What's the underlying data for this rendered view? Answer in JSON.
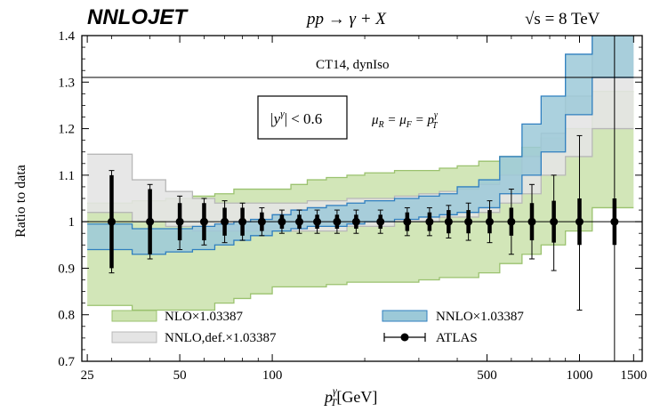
{
  "chart_data": {
    "type": "line",
    "title_logo": "NNLOJET",
    "process": "pp → γ + X",
    "energy": "√s = 8 TeV",
    "ylabel": "Ratio to data",
    "xlabel_main": "p",
    "xlabel_sup": "γ",
    "xlabel_sub": "T",
    "xlabel_unit": "[GeV]",
    "xscale": "log",
    "xlim": [
      24,
      1600
    ],
    "ylim": [
      0.7,
      1.4
    ],
    "x_ticks": [
      25,
      50,
      100,
      500,
      1000,
      1500
    ],
    "y_ticks": [
      0.7,
      0.8,
      0.9,
      1,
      1.1,
      1.2,
      1.3,
      1.4
    ],
    "annotations": {
      "pdf": "CT14, dynIso",
      "rapidity": "|y",
      "rapidity_sup": "γ",
      "rapidity_rest": "| < 0.6",
      "scale_a": "μ",
      "scale_b": "R",
      "scale_c": " = μ",
      "scale_d": "F",
      "scale_e": " = p",
      "scale_f": "γ",
      "scale_g": "T"
    },
    "hline_y": 1.31,
    "bin_edges": [
      25,
      35,
      45,
      55,
      65,
      75,
      85,
      100,
      115,
      130,
      150,
      175,
      200,
      250,
      300,
      350,
      400,
      470,
      550,
      650,
      750,
      900,
      1100,
      1500
    ],
    "series": [
      {
        "name": "NLO×1.03387",
        "color": "#cde3b0",
        "edge": "#9bc26f",
        "lo": [
          0.82,
          0.81,
          0.81,
          0.81,
          0.825,
          0.835,
          0.845,
          0.86,
          0.86,
          0.86,
          0.865,
          0.87,
          0.87,
          0.87,
          0.875,
          0.88,
          0.88,
          0.89,
          0.91,
          0.93,
          0.95,
          0.98,
          1.03
        ],
        "hi": [
          1.04,
          1.045,
          1.05,
          1.055,
          1.06,
          1.07,
          1.07,
          1.07,
          1.08,
          1.09,
          1.095,
          1.1,
          1.105,
          1.11,
          1.11,
          1.115,
          1.12,
          1.13,
          1.14,
          1.16,
          1.18,
          1.2,
          1.28
        ]
      },
      {
        "name": "NNLO,def.×1.03387",
        "color": "#e4e4e4",
        "edge": "#b8b8b8",
        "lo": [
          1.02,
          1.0,
          0.99,
          0.98,
          0.98,
          0.98,
          0.98,
          0.98,
          0.98,
          0.98,
          0.98,
          0.99,
          0.99,
          1.0,
          1.0,
          1.01,
          1.01,
          1.02,
          1.04,
          1.06,
          1.1,
          1.14,
          1.2
        ],
        "hi": [
          1.145,
          1.09,
          1.065,
          1.05,
          1.04,
          1.04,
          1.04,
          1.04,
          1.04,
          1.045,
          1.045,
          1.05,
          1.05,
          1.055,
          1.06,
          1.065,
          1.07,
          1.08,
          1.1,
          1.14,
          1.19,
          1.27,
          1.4
        ]
      },
      {
        "name": "NNLO×1.03387",
        "color": "#9cc9d8",
        "edge": "#2f7fbf",
        "lo": [
          0.94,
          0.93,
          0.935,
          0.94,
          0.95,
          0.96,
          0.97,
          0.98,
          0.985,
          0.99,
          0.99,
          0.995,
          1.0,
          1.005,
          1.01,
          1.015,
          1.02,
          1.03,
          1.06,
          1.1,
          1.15,
          1.23,
          1.31
        ],
        "hi": [
          0.995,
          0.985,
          0.985,
          0.99,
          0.995,
          1.0,
          1.005,
          1.015,
          1.025,
          1.03,
          1.035,
          1.04,
          1.045,
          1.05,
          1.055,
          1.06,
          1.075,
          1.09,
          1.14,
          1.21,
          1.27,
          1.36,
          1.49
        ]
      }
    ],
    "data_series": {
      "name": "ATLAS",
      "x": [
        30,
        40,
        50,
        60,
        70,
        80,
        92.5,
        107.5,
        122.5,
        140,
        162.5,
        187.5,
        225,
        275,
        325,
        375,
        435,
        510,
        600,
        700,
        825,
        1000,
        1300
      ],
      "y": [
        1,
        1,
        1,
        1,
        1,
        1,
        1,
        1,
        1,
        1,
        1,
        1,
        1,
        1,
        1,
        1,
        1,
        1,
        1,
        1,
        1,
        1,
        1
      ],
      "stat_lo": [
        0.9,
        0.93,
        0.96,
        0.96,
        0.97,
        0.97,
        0.98,
        0.985,
        0.985,
        0.985,
        0.985,
        0.985,
        0.985,
        0.98,
        0.98,
        0.975,
        0.975,
        0.975,
        0.97,
        0.96,
        0.955,
        0.95,
        0.95
      ],
      "stat_hi": [
        1.1,
        1.07,
        1.04,
        1.04,
        1.03,
        1.03,
        1.02,
        1.015,
        1.015,
        1.015,
        1.015,
        1.015,
        1.015,
        1.02,
        1.02,
        1.025,
        1.025,
        1.025,
        1.03,
        1.04,
        1.045,
        1.05,
        1.05
      ],
      "tot_lo": [
        0.89,
        0.92,
        0.94,
        0.95,
        0.955,
        0.96,
        0.97,
        0.975,
        0.975,
        0.975,
        0.975,
        0.975,
        0.975,
        0.97,
        0.97,
        0.965,
        0.96,
        0.955,
        0.93,
        0.92,
        0.895,
        0.81,
        0.7
      ],
      "tot_hi": [
        1.11,
        1.08,
        1.055,
        1.05,
        1.045,
        1.04,
        1.03,
        1.025,
        1.025,
        1.025,
        1.025,
        1.025,
        1.025,
        1.03,
        1.03,
        1.035,
        1.04,
        1.045,
        1.07,
        1.08,
        1.1,
        1.185,
        1.4
      ]
    },
    "legend": {
      "nlo": "NLO×1.03387",
      "nnlo": "NNLO×1.03387",
      "nnlo_def": "NNLO,def.×1.03387",
      "atlas": "ATLAS"
    }
  }
}
